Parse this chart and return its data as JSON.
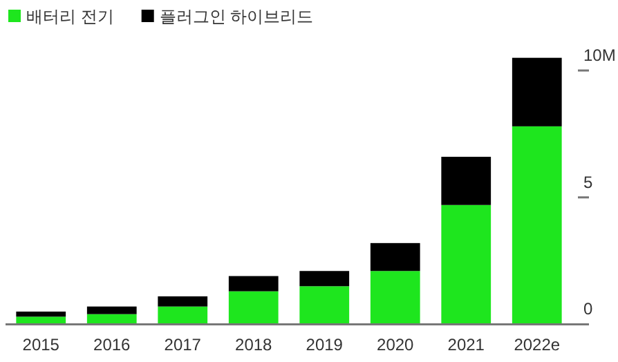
{
  "chart_data": {
    "type": "bar",
    "stacked": true,
    "categories": [
      "2015",
      "2016",
      "2017",
      "2018",
      "2019",
      "2020",
      "2021",
      "2022e"
    ],
    "series": [
      {
        "name": "배터리 전기",
        "color": "#1ee61e",
        "values": [
          0.3,
          0.4,
          0.7,
          1.3,
          1.5,
          2.1,
          4.7,
          7.8
        ]
      },
      {
        "name": "플러그인 하이브리드",
        "color": "#000000",
        "values": [
          0.2,
          0.3,
          0.4,
          0.6,
          0.6,
          1.1,
          1.9,
          2.7
        ]
      }
    ],
    "ylim": [
      0,
      10.6
    ],
    "yticks": [
      0,
      5,
      {
        "value": 10,
        "label": "10M"
      }
    ],
    "legend": "top left",
    "grid": false
  }
}
